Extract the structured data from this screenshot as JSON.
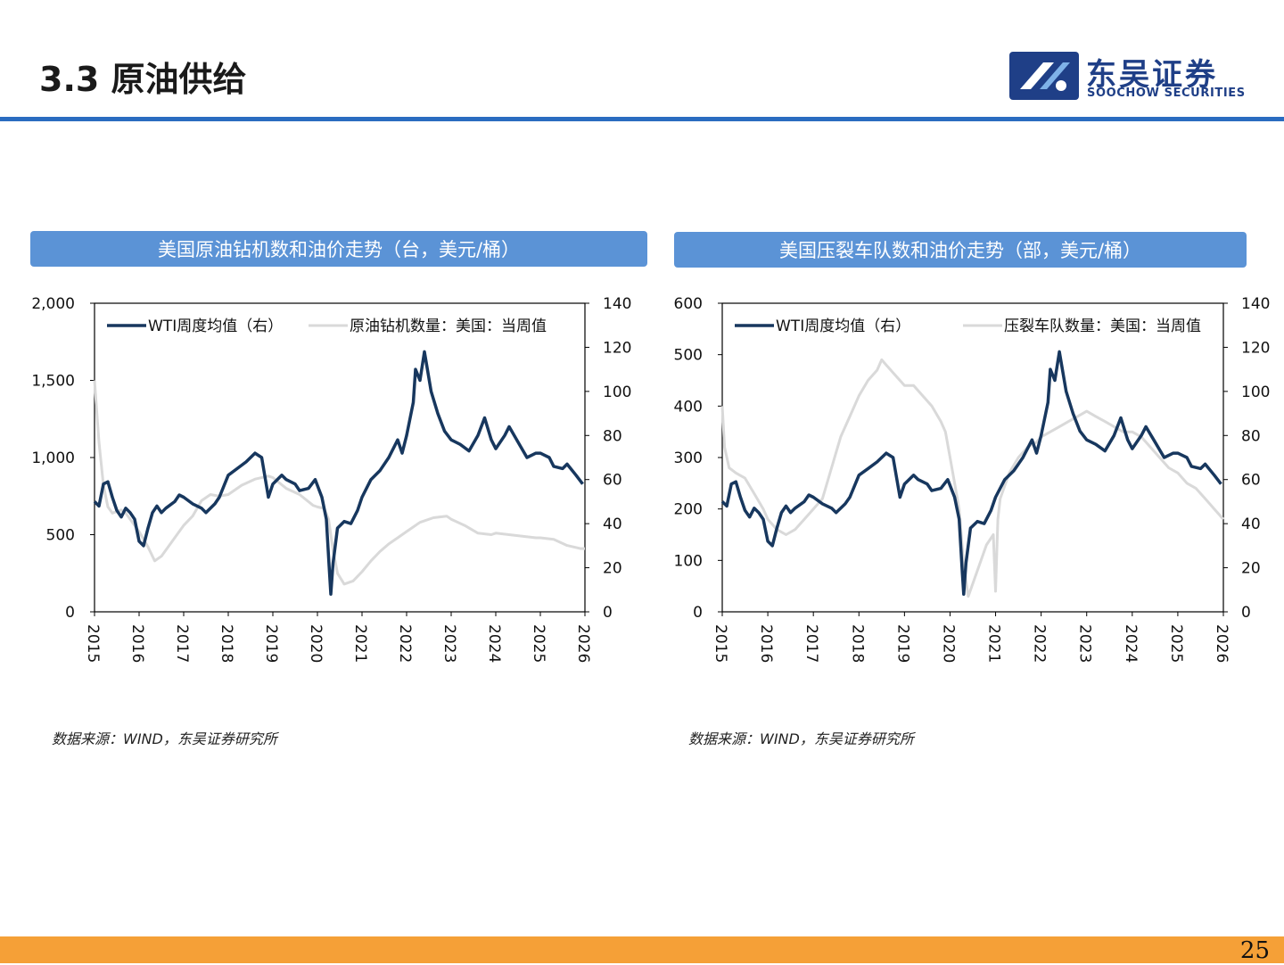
{
  "header": {
    "title": "3.3 原油供给",
    "logo_cn": "东吴证券",
    "logo_en": "SOOCHOW SECURITIES"
  },
  "colors": {
    "accent": "#2a6cc0",
    "banner": "#5b93d6",
    "wti": "#17375e",
    "count": "#d9d9d9",
    "footer": "#f5a037"
  },
  "page_number": "25",
  "chart_data": [
    {
      "type": "line",
      "banner": "美国原油钻机数和油价走势（台，美元/桶）",
      "source": "数据来源：WIND，东吴证券研究所",
      "x_ticks": [
        "2015",
        "2016",
        "2017",
        "2018",
        "2019",
        "2020",
        "2021",
        "2022",
        "2023",
        "2024",
        "2025",
        "2026"
      ],
      "xlim": [
        2015,
        2026
      ],
      "y_left": {
        "ylim": [
          0,
          2000
        ],
        "ticks": [
          0,
          500,
          1000,
          1500,
          2000
        ],
        "tick_labels": [
          "0",
          "500",
          "1,000",
          "1,500",
          "2,000"
        ]
      },
      "y_right": {
        "ylim": [
          0,
          140
        ],
        "ticks": [
          0,
          20,
          40,
          60,
          80,
          100,
          120,
          140
        ],
        "tick_labels": [
          "0",
          "20",
          "40",
          "60",
          "80",
          "100",
          "120",
          "140"
        ]
      },
      "legend": [
        "WTI周度均值（右）",
        "原油钻机数量：美国：当周值"
      ],
      "series": [
        {
          "name": "WTI周度均值（右）",
          "axis": "right",
          "x": [
            2015.0,
            2015.1,
            2015.2,
            2015.3,
            2015.4,
            2015.5,
            2015.6,
            2015.7,
            2015.8,
            2015.9,
            2016.0,
            2016.1,
            2016.2,
            2016.3,
            2016.4,
            2016.5,
            2016.6,
            2016.8,
            2016.9,
            2017.0,
            2017.2,
            2017.4,
            2017.5,
            2017.7,
            2017.8,
            2018.0,
            2018.2,
            2018.4,
            2018.6,
            2018.75,
            2018.9,
            2019.0,
            2019.2,
            2019.3,
            2019.5,
            2019.6,
            2019.8,
            2019.95,
            2020.1,
            2020.2,
            2020.27,
            2020.3,
            2020.35,
            2020.45,
            2020.6,
            2020.75,
            2020.9,
            2021.0,
            2021.2,
            2021.4,
            2021.6,
            2021.8,
            2021.9,
            2022.0,
            2022.15,
            2022.2,
            2022.3,
            2022.4,
            2022.45,
            2022.55,
            2022.7,
            2022.85,
            2023.0,
            2023.2,
            2023.4,
            2023.6,
            2023.75,
            2023.9,
            2024.0,
            2024.2,
            2024.3,
            2024.5,
            2024.7,
            2024.9,
            2025.0,
            2025.2,
            2025.3,
            2025.5,
            2025.6,
            2025.8,
            2025.95
          ],
          "values": [
            50,
            48,
            58,
            59,
            52,
            46,
            43,
            47,
            45,
            42,
            32,
            30,
            38,
            45,
            48,
            45,
            47,
            50,
            53,
            52,
            49,
            47,
            45,
            49,
            52,
            62,
            65,
            68,
            72,
            70,
            52,
            58,
            62,
            60,
            58,
            55,
            56,
            60,
            52,
            42,
            18,
            8,
            22,
            38,
            41,
            40,
            46,
            52,
            60,
            64,
            70,
            78,
            72,
            80,
            95,
            110,
            105,
            118,
            112,
            100,
            90,
            82,
            78,
            76,
            73,
            80,
            88,
            78,
            74,
            80,
            84,
            77,
            70,
            72,
            72,
            70,
            66,
            65,
            67,
            62,
            58
          ]
        },
        {
          "name": "原油钻机数量：美国：当周值",
          "axis": "left",
          "x": [
            2015.0,
            2015.1,
            2015.2,
            2015.3,
            2015.4,
            2015.5,
            2015.6,
            2015.7,
            2015.8,
            2015.9,
            2016.0,
            2016.2,
            2016.35,
            2016.5,
            2016.7,
            2016.9,
            2017.0,
            2017.2,
            2017.4,
            2017.6,
            2017.8,
            2018.0,
            2018.3,
            2018.6,
            2018.9,
            2019.0,
            2019.3,
            2019.6,
            2019.9,
            2020.0,
            2020.15,
            2020.25,
            2020.35,
            2020.45,
            2020.6,
            2020.8,
            2021.0,
            2021.2,
            2021.4,
            2021.6,
            2021.8,
            2022.0,
            2022.3,
            2022.6,
            2022.9,
            2023.0,
            2023.3,
            2023.6,
            2023.9,
            2024.0,
            2024.3,
            2024.6,
            2024.9,
            2025.0,
            2025.3,
            2025.6,
            2025.9,
            2026.0
          ],
          "values": [
            1500,
            1100,
            820,
            680,
            640,
            650,
            660,
            640,
            600,
            560,
            520,
            420,
            330,
            360,
            440,
            520,
            560,
            620,
            720,
            760,
            750,
            760,
            820,
            860,
            880,
            870,
            800,
            760,
            690,
            680,
            670,
            600,
            400,
            250,
            180,
            200,
            260,
            330,
            390,
            440,
            480,
            520,
            580,
            610,
            620,
            600,
            560,
            510,
            500,
            510,
            500,
            490,
            480,
            480,
            470,
            430,
            410,
            410
          ]
        }
      ]
    },
    {
      "type": "line",
      "banner": "美国压裂车队数和油价走势（部，美元/桶）",
      "source": "数据来源：WIND，东吴证券研究所",
      "x_ticks": [
        "2015",
        "2016",
        "2017",
        "2018",
        "2019",
        "2020",
        "2021",
        "2022",
        "2023",
        "2024",
        "2025",
        "2026"
      ],
      "xlim": [
        2015,
        2026
      ],
      "y_left": {
        "ylim": [
          0,
          600
        ],
        "ticks": [
          0,
          100,
          200,
          300,
          400,
          500,
          600
        ],
        "tick_labels": [
          "0",
          "100",
          "200",
          "300",
          "400",
          "500",
          "600"
        ]
      },
      "y_right": {
        "ylim": [
          0,
          140
        ],
        "ticks": [
          0,
          20,
          40,
          60,
          80,
          100,
          120,
          140
        ],
        "tick_labels": [
          "0",
          "20",
          "40",
          "60",
          "80",
          "100",
          "120",
          "140"
        ]
      },
      "legend": [
        "WTI周度均值（右）",
        "压裂车队数量：美国：当周值"
      ],
      "series": [
        {
          "name": "WTI周度均值（右）",
          "axis": "right",
          "x": [
            2015.0,
            2015.1,
            2015.2,
            2015.3,
            2015.4,
            2015.5,
            2015.6,
            2015.7,
            2015.8,
            2015.9,
            2016.0,
            2016.1,
            2016.2,
            2016.3,
            2016.4,
            2016.5,
            2016.6,
            2016.8,
            2016.9,
            2017.0,
            2017.2,
            2017.4,
            2017.5,
            2017.7,
            2017.8,
            2018.0,
            2018.2,
            2018.4,
            2018.6,
            2018.75,
            2018.9,
            2019.0,
            2019.2,
            2019.3,
            2019.5,
            2019.6,
            2019.8,
            2019.95,
            2020.1,
            2020.2,
            2020.27,
            2020.3,
            2020.35,
            2020.45,
            2020.6,
            2020.75,
            2020.9,
            2021.0,
            2021.2,
            2021.4,
            2021.6,
            2021.8,
            2021.9,
            2022.0,
            2022.15,
            2022.2,
            2022.3,
            2022.4,
            2022.45,
            2022.55,
            2022.7,
            2022.85,
            2023.0,
            2023.2,
            2023.4,
            2023.6,
            2023.75,
            2023.9,
            2024.0,
            2024.2,
            2024.3,
            2024.5,
            2024.7,
            2024.9,
            2025.0,
            2025.2,
            2025.3,
            2025.5,
            2025.6,
            2025.8,
            2025.95
          ],
          "values": [
            50,
            48,
            58,
            59,
            52,
            46,
            43,
            47,
            45,
            42,
            32,
            30,
            38,
            45,
            48,
            45,
            47,
            50,
            53,
            52,
            49,
            47,
            45,
            49,
            52,
            62,
            65,
            68,
            72,
            70,
            52,
            58,
            62,
            60,
            58,
            55,
            56,
            60,
            52,
            42,
            18,
            8,
            22,
            38,
            41,
            40,
            46,
            52,
            60,
            64,
            70,
            78,
            72,
            80,
            95,
            110,
            105,
            118,
            112,
            100,
            90,
            82,
            78,
            76,
            73,
            80,
            88,
            78,
            74,
            80,
            84,
            77,
            70,
            72,
            72,
            70,
            66,
            65,
            67,
            62,
            58
          ]
        },
        {
          "name": "压裂车队数量：美国：当周值",
          "axis": "left",
          "x": [
            2015.0,
            2015.05,
            2015.15,
            2015.3,
            2015.5,
            2015.7,
            2015.9,
            2016.0,
            2016.2,
            2016.4,
            2016.6,
            2016.8,
            2017.0,
            2017.2,
            2017.4,
            2017.6,
            2017.8,
            2018.0,
            2018.2,
            2018.4,
            2018.5,
            2018.6,
            2018.8,
            2019.0,
            2019.2,
            2019.4,
            2019.6,
            2019.8,
            2019.9,
            2020.0,
            2020.1,
            2020.2,
            2020.3,
            2020.4,
            2020.6,
            2020.8,
            2020.95,
            2021.0,
            2021.05,
            2021.1,
            2021.3,
            2021.5,
            2021.7,
            2021.9,
            2022.0,
            2022.2,
            2022.4,
            2022.6,
            2022.8,
            2023.0,
            2023.2,
            2023.4,
            2023.6,
            2023.8,
            2024.0,
            2024.2,
            2024.4,
            2024.6,
            2024.8,
            2025.0,
            2025.2,
            2025.4,
            2025.6,
            2025.8,
            2026.0
          ],
          "values": [
            400,
            320,
            280,
            270,
            260,
            230,
            200,
            180,
            160,
            150,
            160,
            180,
            200,
            220,
            280,
            340,
            380,
            420,
            450,
            470,
            490,
            480,
            460,
            440,
            440,
            420,
            400,
            370,
            350,
            300,
            250,
            200,
            90,
            30,
            80,
            130,
            150,
            40,
            180,
            220,
            270,
            300,
            320,
            330,
            340,
            350,
            360,
            370,
            380,
            390,
            380,
            370,
            360,
            350,
            350,
            340,
            320,
            300,
            280,
            270,
            250,
            240,
            220,
            200,
            180
          ]
        }
      ]
    }
  ]
}
